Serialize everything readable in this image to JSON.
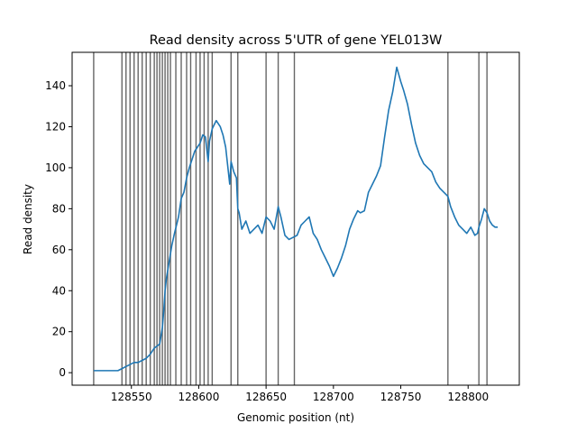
{
  "chart_data": {
    "type": "line",
    "title": "Read density across 5'UTR of gene YEL013W",
    "xlabel": "Genomic position (nt)",
    "ylabel": "Read density",
    "xlim": [
      128506,
      128838
    ],
    "ylim": [
      -6.1,
      156.3
    ],
    "xticks": [
      128550,
      128600,
      128650,
      128700,
      128750,
      128800
    ],
    "yticks": [
      0,
      20,
      40,
      60,
      80,
      100,
      120,
      140
    ],
    "grid": false,
    "line_color": "#1f77b4",
    "vline_color": "#555555",
    "vlines": [
      128522,
      128543,
      128546,
      128549,
      128552,
      128555,
      128558,
      128561,
      128564,
      128567,
      128569,
      128571,
      128573,
      128575,
      128577,
      128579,
      128583,
      128587,
      128591,
      128594,
      128598,
      128601,
      128604,
      128607,
      128610,
      128624,
      128629,
      128650,
      128659,
      128671,
      128785,
      128808,
      128814
    ],
    "series": [
      {
        "x": [
          128522,
          128530,
          128540,
          128543,
          128546,
          128549,
          128552,
          128555,
          128558,
          128561,
          128564,
          128567,
          128569,
          128571,
          128573,
          128574,
          128575,
          128576,
          128577,
          128578,
          128579,
          128580,
          128582,
          128585,
          128587,
          128589,
          128591,
          128593,
          128595,
          128597,
          128599,
          128601,
          128603,
          128605,
          128607,
          128608,
          128610,
          128613,
          128616,
          128618,
          128620,
          128622,
          128623,
          128624,
          128626,
          128628,
          128629,
          128630,
          128632,
          128635,
          128638,
          128641,
          128644,
          128647,
          128650,
          128653,
          128656,
          128659,
          128661,
          128664,
          128667,
          128670,
          128673,
          128676,
          128679,
          128682,
          128685,
          128688,
          128691,
          128694,
          128697,
          128700,
          128703,
          128706,
          128709,
          128712,
          128715,
          128718,
          128720,
          128723,
          128726,
          128729,
          128732,
          128735,
          128738,
          128741,
          128744,
          128747,
          128750,
          128752,
          128755,
          128758,
          128761,
          128764,
          128767,
          128770,
          128773,
          128776,
          128779,
          128782,
          128785,
          128787,
          128790,
          128793,
          128796,
          128799,
          128802,
          128805,
          128807,
          128808,
          128810,
          128812,
          128814,
          128816,
          128818,
          128820,
          128822
        ],
        "y": [
          1,
          1,
          1,
          2,
          3,
          4,
          5,
          5,
          6,
          7,
          9,
          12,
          13,
          14,
          22,
          30,
          40,
          46,
          50,
          54,
          58,
          62,
          68,
          76,
          85,
          88,
          95,
          100,
          104,
          108,
          110,
          112,
          116,
          115,
          103,
          113,
          119,
          123,
          120,
          116,
          110,
          98,
          92,
          103,
          98,
          95,
          80,
          78,
          70,
          74,
          68,
          70,
          72,
          68,
          76,
          74,
          70,
          81,
          76,
          67,
          65,
          66,
          67,
          72,
          74,
          76,
          68,
          65,
          60,
          56,
          52,
          47,
          51,
          56,
          62,
          70,
          75,
          79,
          78,
          79,
          88,
          92,
          96,
          101,
          115,
          128,
          137,
          149,
          142,
          138,
          131,
          121,
          112,
          106,
          102,
          100,
          98,
          93,
          90,
          88,
          86,
          81,
          76,
          72,
          70,
          68,
          71,
          67,
          68,
          71,
          75,
          80,
          78,
          74,
          72,
          71,
          71
        ]
      }
    ]
  }
}
